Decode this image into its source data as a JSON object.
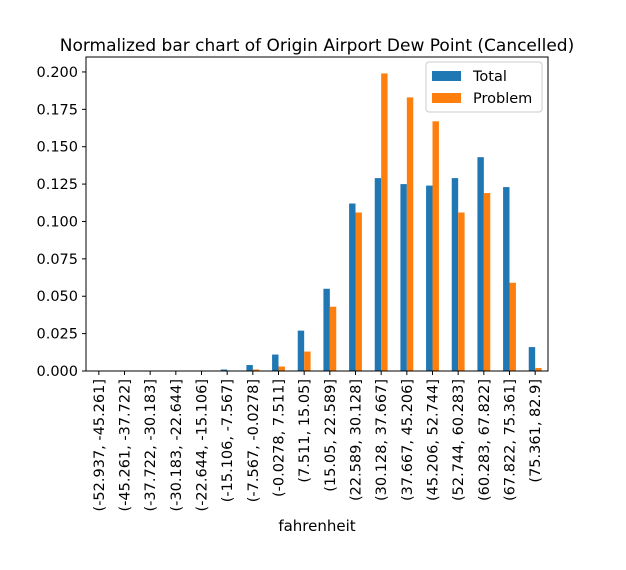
{
  "chart_data": {
    "type": "bar",
    "title": "Normalized bar chart of Origin Airport Dew Point (Cancelled)",
    "xlabel": "fahrenheit",
    "ylabel": "",
    "ylim": [
      0,
      0.21
    ],
    "yticks": [
      "0.000",
      "0.025",
      "0.050",
      "0.075",
      "0.100",
      "0.125",
      "0.150",
      "0.175",
      "0.200"
    ],
    "categories": [
      "(-52.937, -45.261]",
      "(-45.261, -37.722]",
      "(-37.722, -30.183]",
      "(-30.183, -22.644]",
      "(-22.644, -15.106]",
      "(-15.106, -7.567]",
      "(-7.567, -0.0278]",
      "(-0.0278, 7.511]",
      "(7.511, 15.05]",
      "(15.05, 22.589]",
      "(22.589, 30.128]",
      "(30.128, 37.667]",
      "(37.667, 45.206]",
      "(45.206, 52.744]",
      "(52.744, 60.283]",
      "(60.283, 67.822]",
      "(67.822, 75.361]",
      "(75.361, 82.9]"
    ],
    "series": [
      {
        "name": "Total",
        "color": "#1f77b4",
        "values": [
          0.0,
          0.0,
          0.0,
          0.0,
          0.0,
          0.001,
          0.004,
          0.011,
          0.027,
          0.055,
          0.112,
          0.129,
          0.125,
          0.124,
          0.129,
          0.143,
          0.123,
          0.016
        ]
      },
      {
        "name": "Problem",
        "color": "#ff7f0e",
        "values": [
          0.0,
          0.0,
          0.0,
          0.0,
          0.0,
          0.0,
          0.001,
          0.003,
          0.013,
          0.043,
          0.106,
          0.199,
          0.183,
          0.167,
          0.106,
          0.119,
          0.059,
          0.002
        ]
      }
    ],
    "legend": "top-right",
    "grid": false
  }
}
